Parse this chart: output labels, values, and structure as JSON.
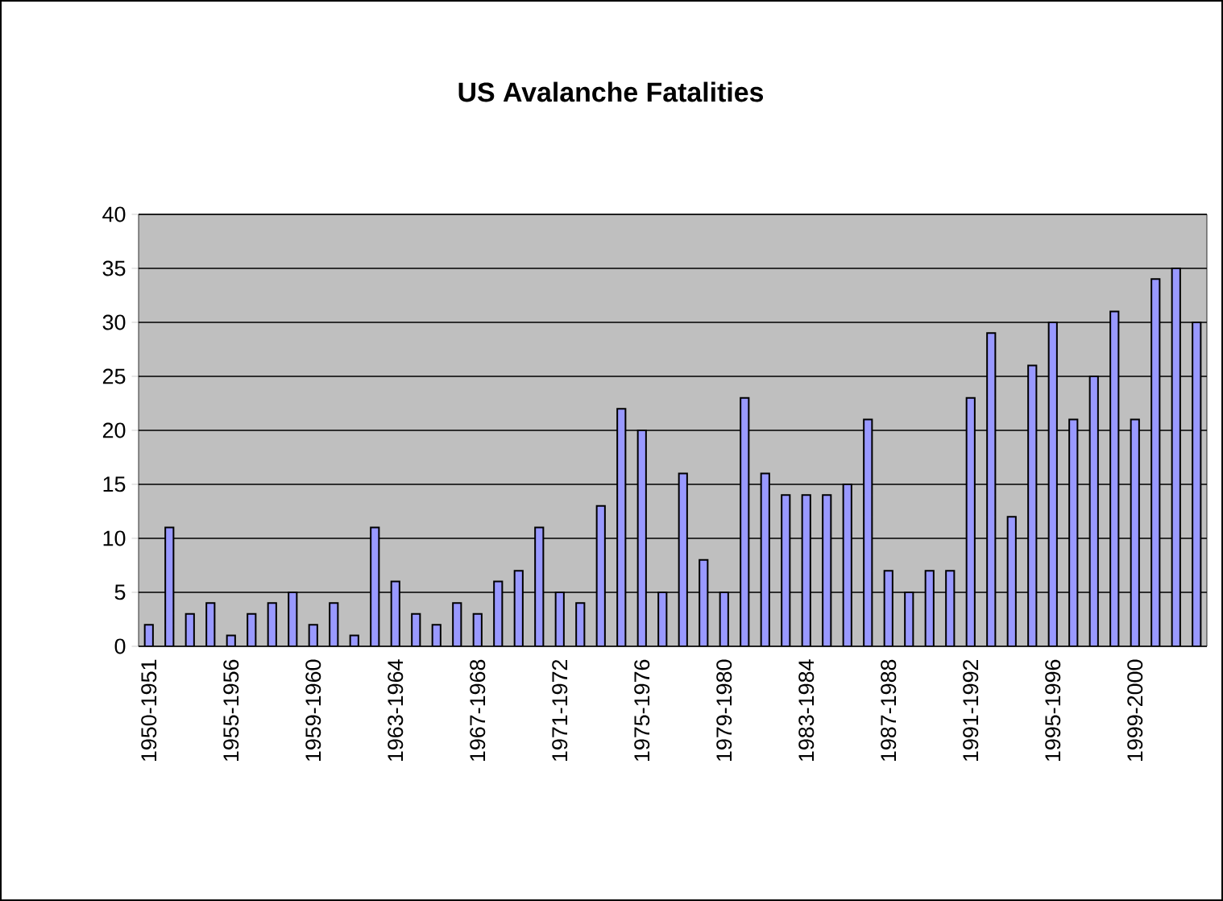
{
  "chart_data": {
    "type": "bar",
    "title": "US Avalanche Fatalities",
    "categories": [
      "1950-1951",
      null,
      null,
      null,
      "1955-1956",
      null,
      null,
      null,
      "1959-1960",
      null,
      null,
      null,
      "1963-1964",
      null,
      null,
      null,
      "1967-1968",
      null,
      null,
      null,
      "1971-1972",
      null,
      null,
      null,
      "1975-1976",
      null,
      null,
      null,
      "1979-1980",
      null,
      null,
      null,
      "1983-1984",
      null,
      null,
      null,
      "1987-1988",
      null,
      null,
      null,
      "1991-1992",
      null,
      null,
      null,
      "1995-1996",
      null,
      null,
      null,
      "1999-2000",
      null,
      null,
      null
    ],
    "values": [
      2,
      11,
      3,
      4,
      1,
      3,
      4,
      5,
      2,
      4,
      1,
      11,
      6,
      3,
      2,
      4,
      3,
      6,
      7,
      11,
      5,
      4,
      13,
      22,
      20,
      5,
      16,
      8,
      5,
      23,
      16,
      14,
      14,
      14,
      15,
      21,
      7,
      5,
      7,
      7,
      23,
      29,
      12,
      26,
      30,
      21,
      25,
      31,
      21,
      34,
      35,
      30
    ],
    "color": "#9999ff",
    "ylim": [
      0,
      40
    ],
    "yticks": [
      0,
      5,
      10,
      15,
      20,
      25,
      30,
      35,
      40
    ],
    "grid": "y"
  }
}
